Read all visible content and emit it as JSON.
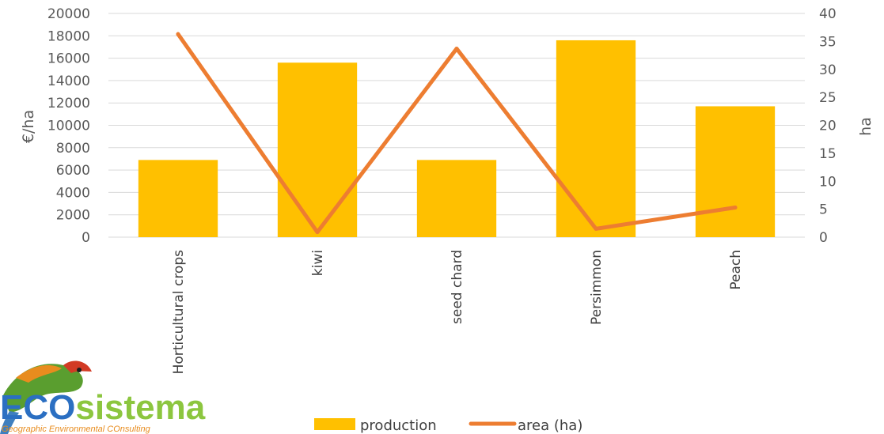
{
  "chart_data": {
    "type": "bar",
    "categories": [
      "Horticultural crops",
      "kiwi",
      "seed chard",
      "Persimmon",
      "Peach"
    ],
    "series": [
      {
        "name": "production",
        "type": "bar",
        "axis": "left",
        "color": "#FFC000",
        "values": [
          6900,
          15600,
          6900,
          17600,
          11700
        ]
      },
      {
        "name": "area (ha)",
        "type": "line",
        "axis": "right",
        "color": "#ED7D31",
        "values": [
          36.3,
          0.9,
          33.7,
          1.5,
          5.3
        ]
      }
    ],
    "ylabel": "€/ha",
    "y2label": "ha",
    "ylim": [
      0,
      20000
    ],
    "y2lim": [
      0,
      40
    ],
    "yticks": [
      "0",
      "2000",
      "4000",
      "6000",
      "8000",
      "10000",
      "12000",
      "14000",
      "16000",
      "18000",
      "20000"
    ],
    "y2ticks": [
      "0",
      "5",
      "10",
      "15",
      "20",
      "25",
      "30",
      "35",
      "40"
    ],
    "grid": true,
    "legend_position": "bottom"
  },
  "logo": {
    "brand_text_a": "ECO",
    "brand_text_b": "sistema",
    "tagline": "Geographic Environmental COnsulting"
  }
}
